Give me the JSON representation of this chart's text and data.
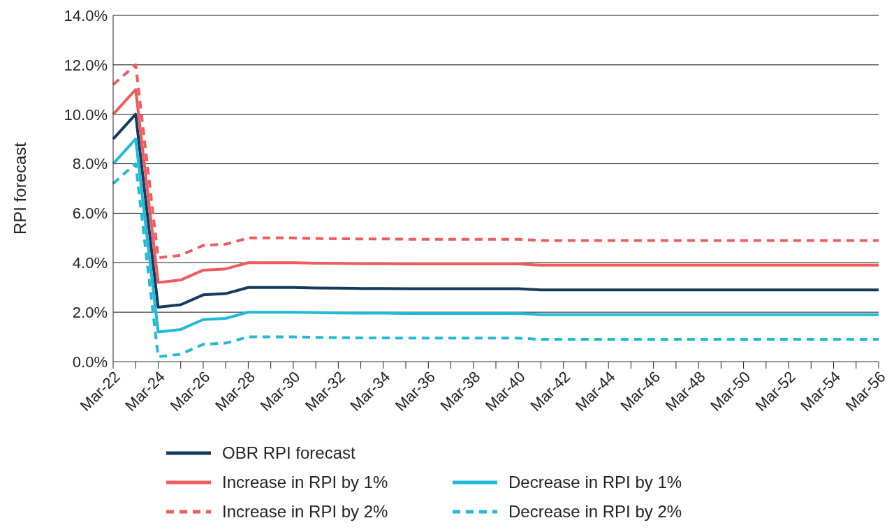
{
  "chart_data": {
    "type": "line",
    "ylabel": "RPI forecast",
    "categories": [
      "Mar-22",
      null,
      "Mar-24",
      null,
      "Mar-26",
      null,
      "Mar-28",
      null,
      "Mar-30",
      null,
      "Mar-32",
      null,
      "Mar-34",
      null,
      "Mar-36",
      null,
      "Mar-38",
      null,
      "Mar-40",
      null,
      "Mar-42",
      null,
      "Mar-44",
      null,
      "Mar-46",
      null,
      "Mar-48",
      null,
      "Mar-50",
      null,
      "Mar-52",
      null,
      "Mar-54",
      null,
      "Mar-56"
    ],
    "ylim": [
      0,
      14
    ],
    "yticks": [
      {
        "value": 0,
        "label": "0.0%"
      },
      {
        "value": 2,
        "label": "2.0%"
      },
      {
        "value": 4,
        "label": "4.0%"
      },
      {
        "value": 6,
        "label": "6.0%"
      },
      {
        "value": 8,
        "label": "8.0%"
      },
      {
        "value": 10,
        "label": "10.0%"
      },
      {
        "value": 12,
        "label": "12.0%"
      },
      {
        "value": 14,
        "label": "14.0%"
      }
    ],
    "grid": "y",
    "legend": "bottom",
    "marker": "none",
    "series": [
      {
        "name": "OBR RPI forecast",
        "color": "#143a5c",
        "line_style": "solid",
        "values": [
          9.0,
          10.0,
          2.2,
          2.3,
          2.7,
          2.75,
          3.0,
          3.0,
          3.0,
          2.98,
          2.97,
          2.96,
          2.96,
          2.95,
          2.95,
          2.95,
          2.95,
          2.95,
          2.95,
          2.9,
          2.9,
          2.9,
          2.9,
          2.9,
          2.9,
          2.9,
          2.9,
          2.9,
          2.9,
          2.9,
          2.9,
          2.9,
          2.9,
          2.9,
          2.9
        ]
      },
      {
        "name": "Increase in RPI by 1%",
        "color": "#ee5c5e",
        "line_style": "solid",
        "values": [
          10.0,
          11.0,
          3.2,
          3.3,
          3.7,
          3.75,
          4.0,
          4.0,
          4.0,
          3.98,
          3.97,
          3.96,
          3.96,
          3.95,
          3.95,
          3.95,
          3.95,
          3.95,
          3.95,
          3.9,
          3.9,
          3.9,
          3.9,
          3.9,
          3.9,
          3.9,
          3.9,
          3.9,
          3.9,
          3.9,
          3.9,
          3.9,
          3.9,
          3.9,
          3.9
        ]
      },
      {
        "name": "Increase in RPI by 2%",
        "color": "#ee5c5e",
        "line_style": "dashed",
        "values": [
          11.2,
          12.0,
          4.2,
          4.3,
          4.7,
          4.75,
          5.0,
          5.0,
          5.0,
          4.98,
          4.97,
          4.96,
          4.96,
          4.95,
          4.95,
          4.95,
          4.95,
          4.95,
          4.95,
          4.9,
          4.9,
          4.9,
          4.9,
          4.9,
          4.9,
          4.9,
          4.9,
          4.9,
          4.9,
          4.9,
          4.9,
          4.9,
          4.9,
          4.9,
          4.9
        ]
      },
      {
        "name": "Decrease in RPI by 1%",
        "color": "#22b9d9",
        "line_style": "solid",
        "values": [
          8.0,
          9.0,
          1.2,
          1.3,
          1.7,
          1.75,
          2.0,
          2.0,
          2.0,
          1.98,
          1.97,
          1.96,
          1.96,
          1.95,
          1.95,
          1.95,
          1.95,
          1.95,
          1.95,
          1.9,
          1.9,
          1.9,
          1.9,
          1.9,
          1.9,
          1.9,
          1.9,
          1.9,
          1.9,
          1.9,
          1.9,
          1.9,
          1.9,
          1.9,
          1.9
        ]
      },
      {
        "name": "Decrease in RPI by 2%",
        "color": "#22b9d9",
        "line_style": "dashed",
        "values": [
          7.2,
          8.0,
          0.2,
          0.3,
          0.7,
          0.75,
          1.0,
          1.0,
          1.0,
          0.98,
          0.97,
          0.96,
          0.96,
          0.95,
          0.95,
          0.95,
          0.95,
          0.95,
          0.95,
          0.9,
          0.9,
          0.9,
          0.9,
          0.9,
          0.9,
          0.9,
          0.9,
          0.9,
          0.9,
          0.9,
          0.9,
          0.9,
          0.9,
          0.9,
          0.9
        ]
      }
    ]
  }
}
